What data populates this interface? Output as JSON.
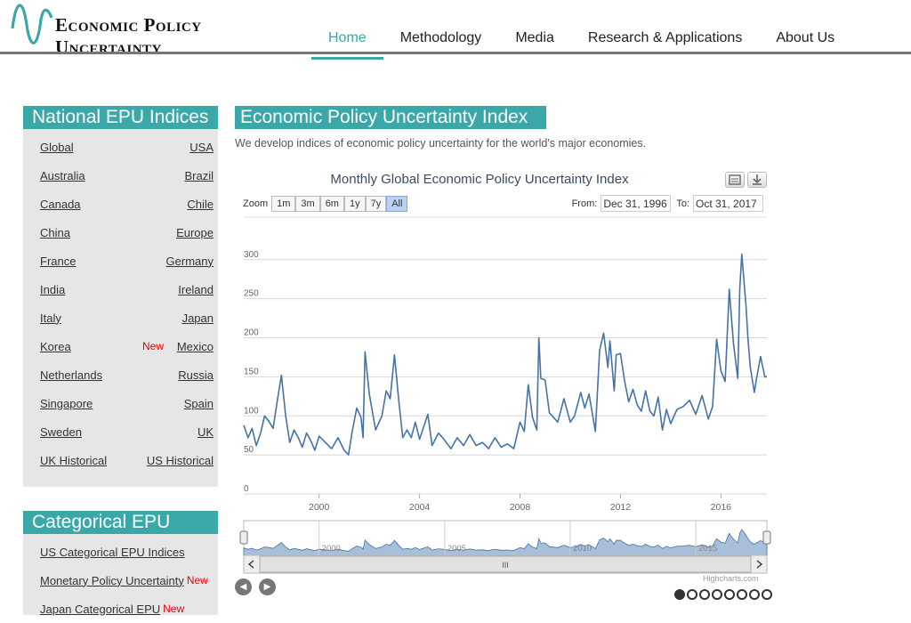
{
  "brand": {
    "name": "Economic Policy Uncertainty"
  },
  "nav": [
    {
      "label": "Home",
      "active": true
    },
    {
      "label": "Methodology"
    },
    {
      "label": "Media"
    },
    {
      "label": "Research & Applications"
    },
    {
      "label": "About Us"
    }
  ],
  "sidebar": {
    "national_title": "National EPU Indices",
    "national_rows": [
      {
        "left": "Global",
        "right": "USA"
      },
      {
        "left": "Australia",
        "right": "Brazil"
      },
      {
        "left": "Canada",
        "right": "Chile"
      },
      {
        "left": "China",
        "right": "Europe"
      },
      {
        "left": "France",
        "right": "Germany"
      },
      {
        "left": "India",
        "right": "Ireland"
      },
      {
        "left": "Italy",
        "right": "Japan"
      },
      {
        "left": "Korea",
        "badge": "New",
        "right": "Mexico"
      },
      {
        "left": "Netherlands",
        "right": "Russia"
      },
      {
        "left": "Singapore",
        "right": "Spain"
      },
      {
        "left": "Sweden",
        "right": "UK"
      },
      {
        "left": "UK Historical",
        "right": "US Historical"
      }
    ],
    "categorical_title": "Categorical EPU",
    "categorical_items": [
      {
        "label": "US Categorical EPU Indices"
      },
      {
        "label": "Monetary Policy Uncertainty",
        "badge": "New"
      },
      {
        "label": "Japan Categorical EPU",
        "badge": "New"
      }
    ]
  },
  "main": {
    "title": "Economic Policy Uncertainty Index",
    "description": "We develop indices of economic policy uncertainty for the world's major economies."
  },
  "chart": {
    "zoom_label": "Zoom",
    "zoom_buttons": [
      "1m",
      "3m",
      "6m",
      "1y",
      "7y",
      "All"
    ],
    "zoom_selected": "All",
    "from_label": "From:",
    "from_value": "Dec 31, 1996",
    "to_label": "To:",
    "to_value": "Oct 31, 2017",
    "credit": "Highcharts.com",
    "navigator_scroll_glyph": "III",
    "carousel_slides": 8,
    "carousel_active": 0,
    "line_color": "#4572a7",
    "navigator_fill": "#a7bfd9",
    "icons": [
      "print-icon",
      "download-icon",
      "prev-arrow-icon",
      "next-arrow-icon"
    ]
  },
  "chart_data": {
    "type": "line",
    "title": "Monthly Global Economic Policy Uncertainty Index",
    "xlabel": "",
    "ylabel": "",
    "y_ticks": [
      0,
      50,
      100,
      150,
      200,
      250,
      300
    ],
    "x_ticks": [
      "2000",
      "2004",
      "2008",
      "2012",
      "2016"
    ],
    "navigator_ticks": [
      "2000",
      "2005",
      "2010",
      "2015"
    ],
    "ylim": [
      0,
      310
    ],
    "xlim": [
      1997.0,
      2017.83
    ],
    "grid": true,
    "series": [
      {
        "x": [
          1997.0,
          1997.17,
          1997.33,
          1997.5,
          1997.67,
          1997.83,
          1998.0,
          1998.17,
          1998.33,
          1998.5,
          1998.67,
          1998.83,
          1999.0,
          1999.17,
          1999.33,
          1999.5,
          1999.67,
          1999.83,
          2000.0,
          2000.25,
          2000.5,
          2000.75,
          2001.0,
          2001.17,
          2001.33,
          2001.5,
          2001.67,
          2001.75,
          2001.83,
          2002.0,
          2002.25,
          2002.5,
          2002.67,
          2002.83,
          2003.0,
          2003.17,
          2003.33,
          2003.5,
          2003.67,
          2003.83,
          2004.0,
          2004.33,
          2004.5,
          2004.75,
          2004.92,
          2005.25,
          2005.5,
          2005.75,
          2006.0,
          2006.25,
          2006.5,
          2006.75,
          2007.0,
          2007.25,
          2007.5,
          2007.75,
          2008.0,
          2008.17,
          2008.33,
          2008.5,
          2008.67,
          2008.75,
          2008.83,
          2009.0,
          2009.17,
          2009.5,
          2009.75,
          2010.0,
          2010.17,
          2010.42,
          2010.58,
          2010.75,
          2011.0,
          2011.17,
          2011.33,
          2011.5,
          2011.58,
          2011.75,
          2011.83,
          2012.0,
          2012.17,
          2012.33,
          2012.5,
          2012.67,
          2012.83,
          2013.0,
          2013.17,
          2013.33,
          2013.5,
          2013.67,
          2013.83,
          2014.0,
          2014.25,
          2014.5,
          2014.75,
          2015.0,
          2015.25,
          2015.5,
          2015.67,
          2015.83,
          2016.0,
          2016.17,
          2016.33,
          2016.5,
          2016.67,
          2016.75,
          2016.83,
          2017.0,
          2017.08,
          2017.17,
          2017.33,
          2017.42,
          2017.58,
          2017.75,
          2017.83
        ],
        "values": [
          88,
          72,
          84,
          62,
          78,
          100,
          93,
          84,
          118,
          152,
          100,
          66,
          82,
          72,
          60,
          78,
          68,
          56,
          74,
          66,
          58,
          72,
          56,
          50,
          82,
          110,
          98,
          72,
          182,
          128,
          82,
          100,
          132,
          122,
          178,
          120,
          72,
          82,
          72,
          92,
          70,
          102,
          62,
          78,
          72,
          58,
          72,
          62,
          76,
          62,
          66,
          58,
          72,
          60,
          64,
          58,
          92,
          80,
          140,
          98,
          82,
          200,
          148,
          146,
          104,
          92,
          122,
          92,
          100,
          130,
          110,
          128,
          80,
          184,
          206,
          162,
          196,
          132,
          178,
          180,
          144,
          118,
          134,
          114,
          106,
          132,
          106,
          100,
          124,
          82,
          108,
          90,
          108,
          112,
          120,
          102,
          126,
          96,
          112,
          198,
          158,
          144,
          262,
          192,
          148,
          262,
          307,
          240,
          198,
          162,
          130,
          148,
          176,
          150,
          150
        ],
        "name": ""
      }
    ]
  }
}
